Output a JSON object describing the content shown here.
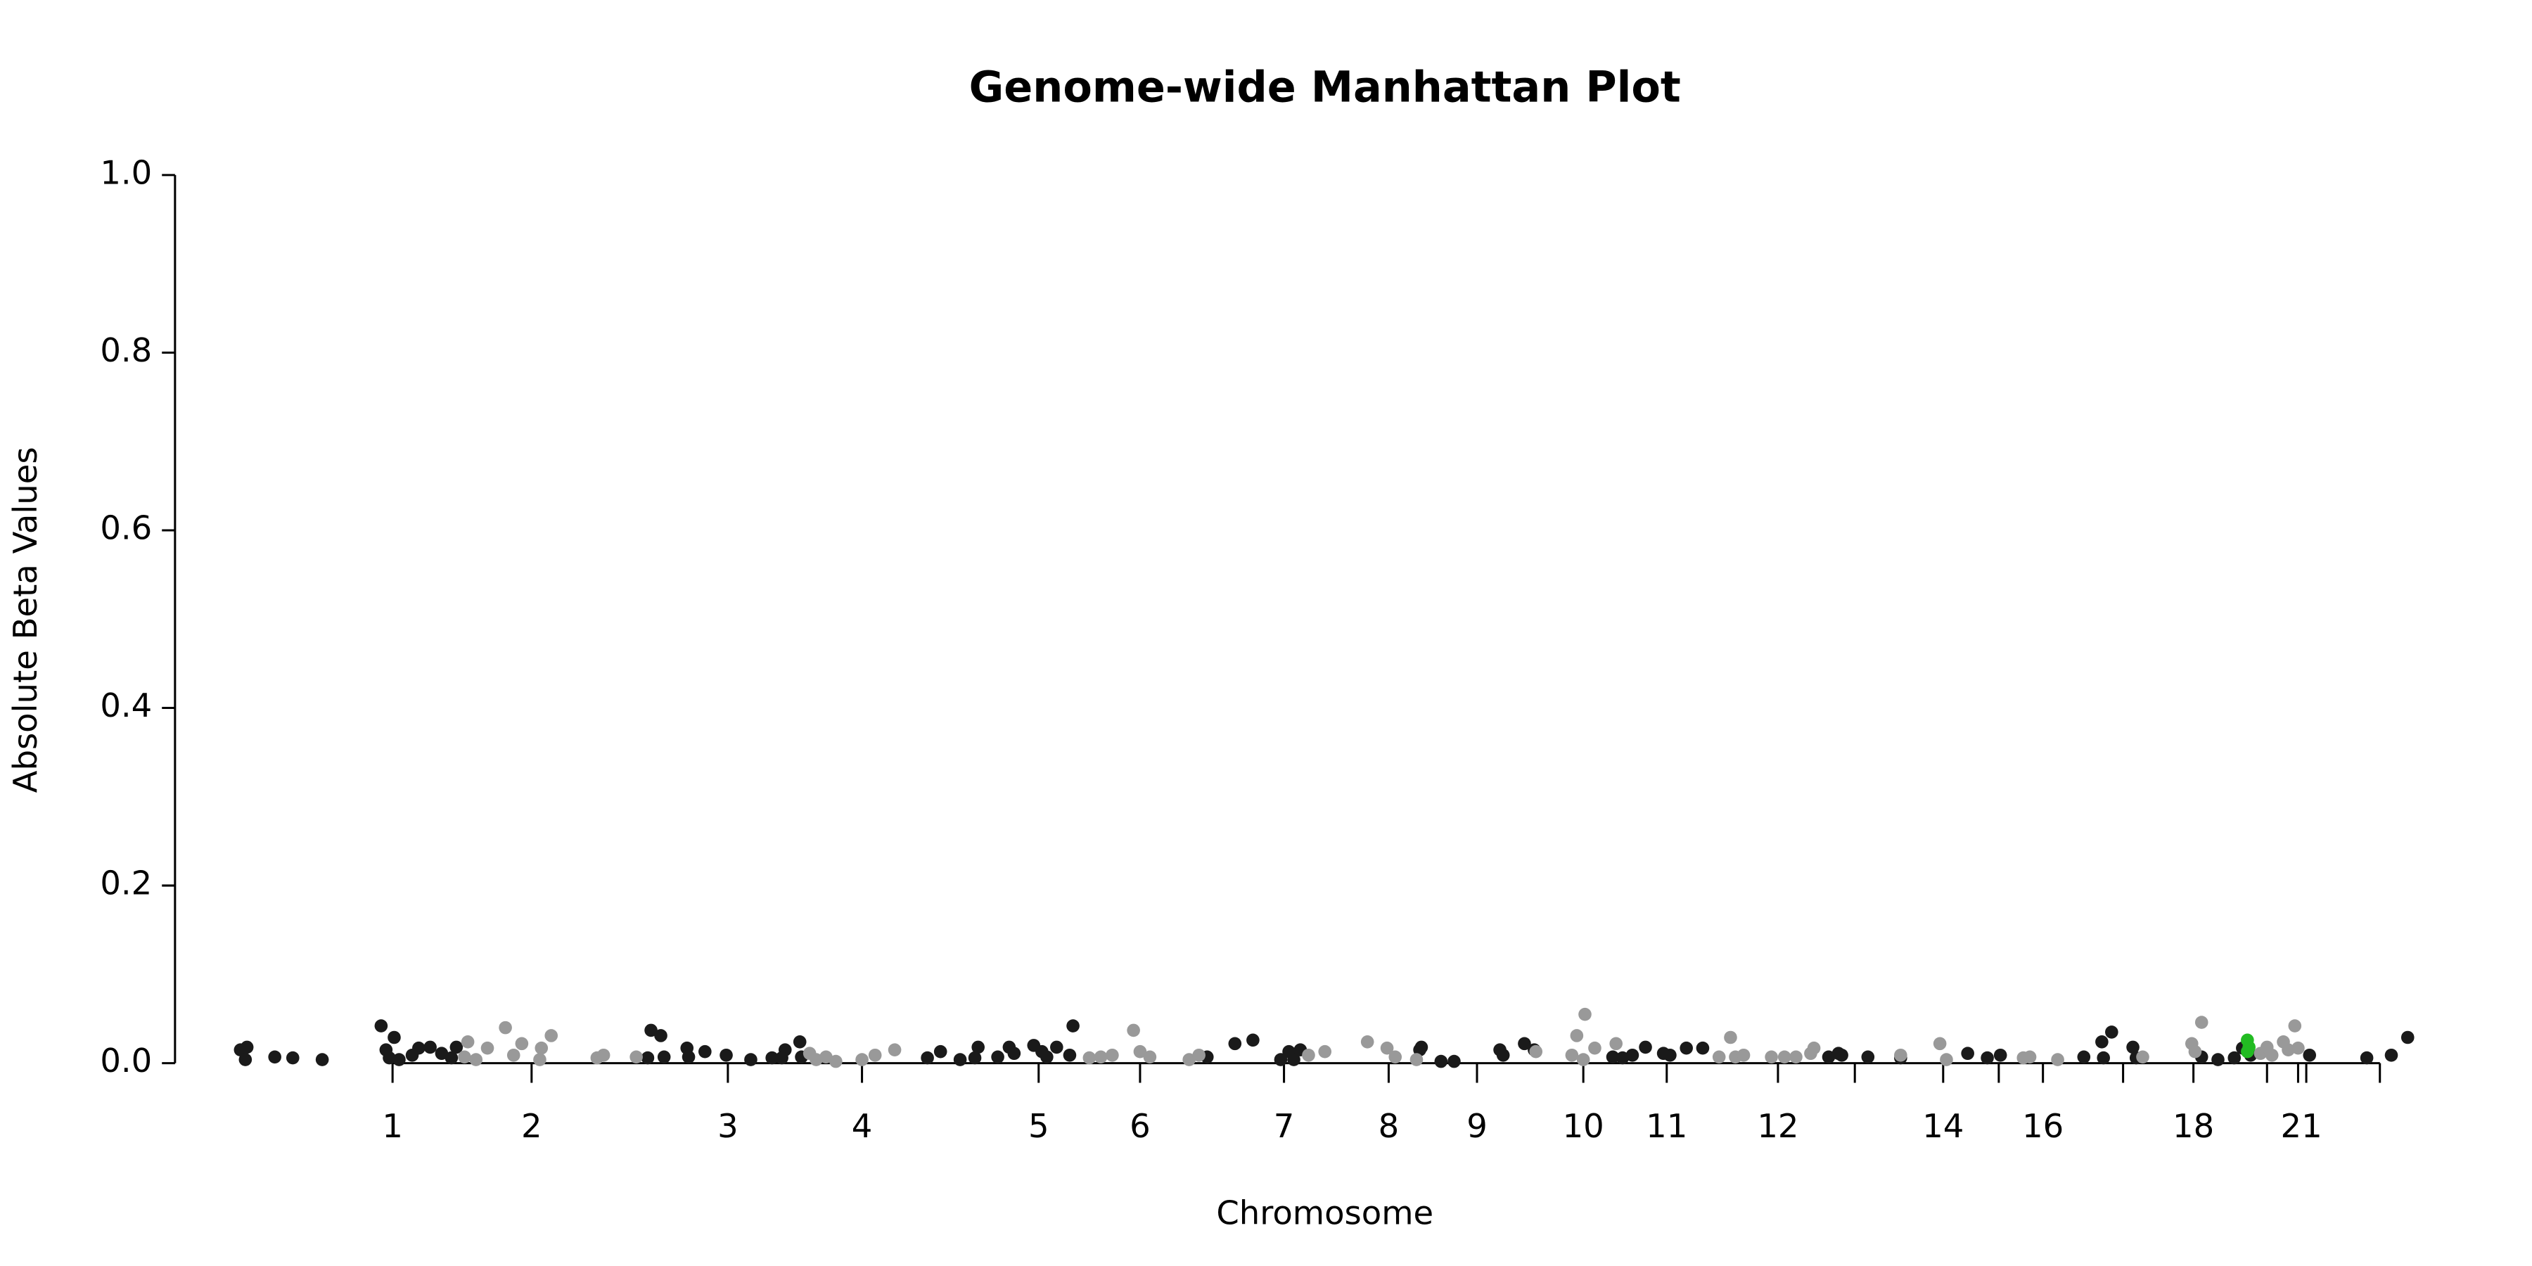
{
  "chart_data": {
    "type": "scatter",
    "title": "Genome-wide Manhattan Plot",
    "xlabel": "Chromosome",
    "ylabel": "Absolute Beta Values",
    "xlim": [
      107,
      1480
    ],
    "ylim": [
      0,
      1
    ],
    "yticks": [
      {
        "value": 0,
        "label": "0.0"
      },
      {
        "value": 0.2,
        "label": "0.2"
      },
      {
        "value": 0.4,
        "label": "0.4"
      },
      {
        "value": 0.6,
        "label": "0.6"
      },
      {
        "value": 0.8,
        "label": "0.8"
      },
      {
        "value": 1,
        "label": "1.0"
      }
    ],
    "xticks": [
      {
        "value": 240,
        "label": "1"
      },
      {
        "value": 325,
        "label": "2"
      },
      {
        "value": 445,
        "label": "3"
      },
      {
        "value": 527,
        "label": "4"
      },
      {
        "value": 635,
        "label": "5"
      },
      {
        "value": 697,
        "label": "6"
      },
      {
        "value": 785,
        "label": "7"
      },
      {
        "value": 849,
        "label": "8"
      },
      {
        "value": 903,
        "label": "9"
      },
      {
        "value": 968,
        "label": "10"
      },
      {
        "value": 1019,
        "label": "11"
      },
      {
        "value": 1087,
        "label": "12"
      },
      {
        "value": 1134,
        "label": null
      },
      {
        "value": 1188,
        "label": "14"
      },
      {
        "value": 1222,
        "label": null
      },
      {
        "value": 1249,
        "label": "16"
      },
      {
        "value": 1298,
        "label": null
      },
      {
        "value": 1341,
        "label": "18"
      },
      {
        "value": 1386,
        "label": null
      },
      {
        "value": 1405,
        "label": null
      },
      {
        "value": 1410,
        "label": "21"
      },
      {
        "value": 1455,
        "label": null
      }
    ],
    "series": [
      {
        "color": "#1a1a1a",
        "x": [
          147,
          151,
          150,
          168,
          179,
          197,
          233,
          236,
          241,
          238,
          244,
          252,
          256,
          263,
          270,
          279,
          276,
          398,
          404,
          396,
          406,
          420,
          421,
          431,
          444,
          459,
          472,
          480,
          489,
          478,
          490,
          575,
          567,
          587,
          598,
          596,
          610,
          617,
          620,
          632,
          637,
          640,
          646,
          656,
          654,
          738,
          755,
          766,
          783,
          788,
          795,
          791,
          869,
          868,
          881,
          889,
          917,
          919,
          932,
          938,
          986,
          992,
          998,
          1006,
          1017,
          1021,
          1031,
          1041,
          1118,
          1124,
          1126,
          1142,
          1162,
          1203,
          1215,
          1223,
          1274,
          1285,
          1291,
          1286,
          1304,
          1306,
          1346,
          1356,
          1366,
          1371,
          1376,
          1412,
          1447,
          1462,
          1472
        ],
        "values": [
          0.015,
          0.018,
          0.004,
          0.007,
          0.006,
          0.004,
          0.042,
          0.015,
          0.029,
          0.006,
          0.004,
          0.009,
          0.017,
          0.018,
          0.011,
          0.018,
          0.006,
          0.037,
          0.031,
          0.006,
          0.007,
          0.017,
          0.007,
          0.013,
          0.009,
          0.004,
          0.006,
          0.015,
          0.024,
          0.006,
          0.007,
          0.013,
          0.006,
          0.004,
          0.018,
          0.006,
          0.007,
          0.018,
          0.011,
          0.02,
          0.013,
          0.007,
          0.018,
          0.042,
          0.009,
          0.007,
          0.022,
          0.026,
          0.004,
          0.013,
          0.015,
          0.004,
          0.018,
          0.015,
          0.002,
          0.002,
          0.015,
          0.009,
          0.022,
          0.015,
          0.007,
          0.006,
          0.009,
          0.018,
          0.011,
          0.009,
          0.017,
          0.017,
          0.007,
          0.011,
          0.009,
          0.007,
          0.006,
          0.011,
          0.006,
          0.009,
          0.007,
          0.024,
          0.035,
          0.006,
          0.018,
          0.006,
          0.007,
          0.004,
          0.006,
          0.017,
          0.009,
          0.009,
          0.006,
          0.009,
          0.029
        ]
      },
      {
        "color": "#999999",
        "x": [
          284,
          286,
          291,
          298,
          309,
          314,
          319,
          331,
          337,
          330,
          365,
          369,
          389,
          495,
          499,
          505,
          511,
          527,
          535,
          547,
          666,
          673,
          680,
          693,
          697,
          703,
          727,
          733,
          800,
          810,
          836,
          848,
          853,
          866,
          939,
          961,
          964,
          969,
          968,
          975,
          988,
          1051,
          1058,
          1061,
          1066,
          1083,
          1091,
          1098,
          1107,
          1109,
          1162,
          1186,
          1190,
          1237,
          1241,
          1258,
          1310,
          1340,
          1342,
          1346,
          1382,
          1386,
          1389,
          1396,
          1399,
          1403,
          1405
        ],
        "values": [
          0.007,
          0.024,
          0.004,
          0.017,
          0.04,
          0.009,
          0.022,
          0.017,
          0.031,
          0.004,
          0.006,
          0.009,
          0.007,
          0.011,
          0.004,
          0.007,
          0.002,
          0.004,
          0.009,
          0.015,
          0.006,
          0.007,
          0.009,
          0.037,
          0.013,
          0.007,
          0.004,
          0.009,
          0.009,
          0.013,
          0.024,
          0.017,
          0.007,
          0.004,
          0.013,
          0.009,
          0.031,
          0.055,
          0.004,
          0.017,
          0.022,
          0.007,
          0.029,
          0.007,
          0.009,
          0.007,
          0.007,
          0.007,
          0.011,
          0.017,
          0.009,
          0.022,
          0.004,
          0.006,
          0.007,
          0.004,
          0.007,
          0.022,
          0.013,
          0.046,
          0.011,
          0.018,
          0.009,
          0.024,
          0.015,
          0.042,
          0.017
        ]
      },
      {
        "color": "#22bb22",
        "x": [
          1374,
          1375,
          1374
        ],
        "values": [
          0.026,
          0.018,
          0.013
        ]
      }
    ]
  }
}
